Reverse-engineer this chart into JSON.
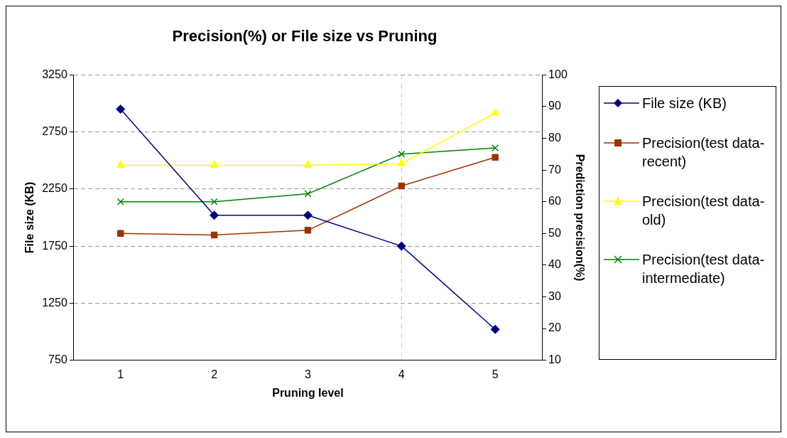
{
  "chart_data": {
    "type": "line",
    "title": "Precision(%) or File size vs Pruning",
    "xlabel": "Pruning level",
    "ylabel": "File size (KB)",
    "y2label": "Prediction precision(%)",
    "categories": [
      "1",
      "2",
      "3",
      "4",
      "5"
    ],
    "ylim": [
      750,
      3250
    ],
    "yticks": [
      750,
      1250,
      1750,
      2250,
      2750,
      3250
    ],
    "y2lim": [
      10,
      100
    ],
    "y2ticks": [
      10,
      20,
      30,
      40,
      50,
      60,
      70,
      80,
      90,
      100
    ],
    "series": [
      {
        "name": "File size (KB)",
        "color": "#000080",
        "marker": "diamond",
        "values": [
          2950,
          2020,
          2020,
          1750,
          1020
        ]
      },
      {
        "name": "Precision(test data-recent)",
        "color": "#993300",
        "marker": "square",
        "axis": "y2",
        "values": [
          50,
          49.5,
          51,
          65,
          74
        ]
      },
      {
        "name": "Precision(test data-old)",
        "color": "#ffff00",
        "marker": "triangle",
        "axis": "y2",
        "values": [
          71.5,
          71.5,
          71.5,
          72,
          88
        ]
      },
      {
        "name": "Precision(test data-intermediate)",
        "color": "#008000",
        "marker": "cross",
        "axis": "y2",
        "values": [
          60,
          60,
          62.5,
          75,
          77
        ]
      }
    ],
    "ref_lines": [
      {
        "axis": "x",
        "value": "4",
        "color": "#c0c0c0",
        "line_style": "dashdot"
      }
    ],
    "grid": "y",
    "legend": "right",
    "line_style": "solid"
  }
}
